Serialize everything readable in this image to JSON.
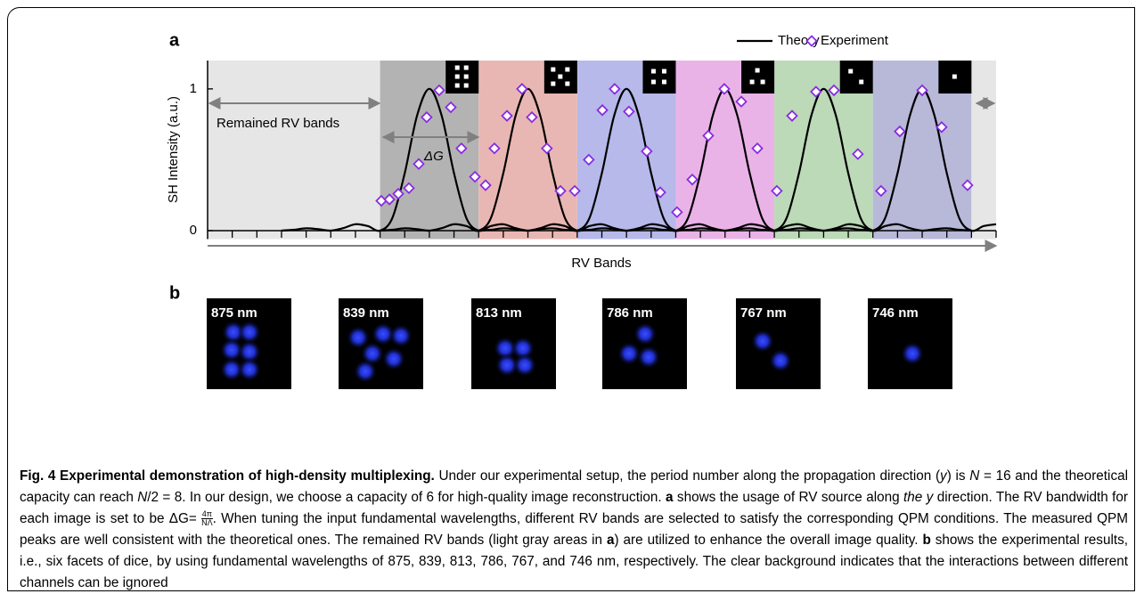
{
  "chart_data": {
    "type": "line",
    "panel_label": "a",
    "y_label": "SH Intensity (a.u.)",
    "x_label": "RV Bands",
    "annotations": [
      "Remained RV bands",
      "ΔG"
    ],
    "xlim": [
      0,
      32
    ],
    "ylim": [
      -0.06,
      1.2
    ],
    "yticks": [
      0,
      1
    ],
    "xticks": [
      1,
      2,
      3,
      4,
      5,
      6,
      7,
      8,
      9,
      10,
      11,
      12,
      13,
      14,
      15,
      16,
      17,
      18,
      19,
      20,
      21,
      22,
      23,
      24,
      25,
      26,
      27,
      28,
      29,
      30,
      31,
      32
    ],
    "legend": "top-right",
    "bands": [
      {
        "from": 0,
        "to": 7,
        "color": "#e6e6e6"
      },
      {
        "from": 7,
        "to": 11,
        "color": "#b3b3b3"
      },
      {
        "from": 11,
        "to": 15,
        "color": "#e9b7b3"
      },
      {
        "from": 15,
        "to": 19,
        "color": "#b6b9e9"
      },
      {
        "from": 19,
        "to": 23,
        "color": "#eab3e8"
      },
      {
        "from": 23,
        "to": 27,
        "color": "#bcd9b8"
      },
      {
        "from": 27,
        "to": 31,
        "color": "#b8b8d8"
      },
      {
        "from": 31,
        "to": 32,
        "color": "#e6e6e6"
      }
    ],
    "series": [
      {
        "name": "Theory",
        "type": "line",
        "color": "#000000",
        "x": [
          3,
          3.5,
          4,
          4.5,
          5,
          5.5,
          6,
          6.5,
          7,
          7.5,
          8,
          8.5,
          9,
          9.5,
          10,
          10.5,
          11,
          11.5,
          12,
          12.5,
          13,
          13.5,
          14,
          14.5,
          15,
          null,
          7,
          7.5,
          8,
          8.5,
          9,
          9.5,
          10,
          10.5,
          11,
          11.5,
          12,
          12.5,
          13,
          13.5,
          14,
          14.5,
          15,
          15.5,
          16,
          16.5,
          17,
          17.5,
          18,
          18.5,
          19,
          null,
          11,
          11.5,
          12,
          12.5,
          13,
          13.5,
          14,
          14.5,
          15,
          15.5,
          16,
          16.5,
          17,
          17.5,
          18,
          18.5,
          19,
          19.5,
          20,
          20.5,
          21,
          21.5,
          22,
          22.5,
          23,
          null,
          15,
          15.5,
          16,
          16.5,
          17,
          17.5,
          18,
          18.5,
          19,
          19.5,
          20,
          20.5,
          21,
          21.5,
          22,
          22.5,
          23,
          23.5,
          24,
          24.5,
          25,
          25.5,
          26,
          26.5,
          27,
          null,
          19,
          19.5,
          20,
          20.5,
          21,
          21.5,
          22,
          22.5,
          23,
          23.5,
          24,
          24.5,
          25,
          25.5,
          26,
          26.5,
          27,
          27.5,
          28,
          28.5,
          29,
          29.5,
          30,
          30.5,
          31,
          null,
          23,
          23.5,
          24,
          24.5,
          25,
          25.5,
          26,
          26.5,
          27,
          27.5,
          28,
          28.5,
          29,
          29.5,
          30,
          30.5,
          31,
          31.5,
          32
        ],
        "values": [
          0,
          0.006,
          0.016,
          0.01,
          0,
          0.017,
          0.045,
          0.032,
          0,
          0.09,
          0.405,
          0.811,
          1,
          0.811,
          0.405,
          0.09,
          0,
          0.032,
          0.045,
          0.017,
          0,
          0.01,
          0.016,
          0.006,
          0,
          null,
          0,
          0.006,
          0.016,
          0.01,
          0,
          0.017,
          0.045,
          0.032,
          0,
          0.09,
          0.405,
          0.811,
          1,
          0.811,
          0.405,
          0.09,
          0,
          0.032,
          0.045,
          0.017,
          0,
          0.01,
          0.016,
          0.006,
          0,
          null,
          0,
          0.006,
          0.016,
          0.01,
          0,
          0.017,
          0.045,
          0.032,
          0,
          0.09,
          0.405,
          0.811,
          1,
          0.811,
          0.405,
          0.09,
          0,
          0.032,
          0.045,
          0.017,
          0,
          0.01,
          0.016,
          0.006,
          0,
          null,
          0,
          0.006,
          0.016,
          0.01,
          0,
          0.017,
          0.045,
          0.032,
          0,
          0.09,
          0.405,
          0.811,
          1,
          0.811,
          0.405,
          0.09,
          0,
          0.032,
          0.045,
          0.017,
          0,
          0.01,
          0.016,
          0.006,
          0,
          null,
          0,
          0.006,
          0.016,
          0.01,
          0,
          0.017,
          0.045,
          0.032,
          0,
          0.09,
          0.405,
          0.811,
          1,
          0.811,
          0.405,
          0.09,
          0,
          0.032,
          0.045,
          0.017,
          0,
          0.01,
          0.016,
          0.006,
          0,
          null,
          0,
          0.006,
          0.016,
          0.01,
          0,
          0.017,
          0.045,
          0.032,
          0,
          0.09,
          0.405,
          0.811,
          1,
          0.811,
          0.405,
          0.09,
          0,
          0.032,
          0.045
        ]
      },
      {
        "name": "Experiment",
        "type": "scatter",
        "color": "#8a2be2",
        "x": [
          7.05,
          7.38,
          7.74,
          8.17,
          8.57,
          8.89,
          9.4,
          9.87,
          10.3,
          10.85,
          11.28,
          11.64,
          12.15,
          12.76,
          13.16,
          13.77,
          14.32,
          14.9,
          15.47,
          16.02,
          16.52,
          17.1,
          17.82,
          18.37,
          19.05,
          19.67,
          20.32,
          20.97,
          21.66,
          22.31,
          23.1,
          23.72,
          24.69,
          25.42,
          26.39,
          27.33,
          28.09,
          29.0,
          29.79,
          30.84
        ],
        "values": [
          0.21,
          0.22,
          0.26,
          0.3,
          0.47,
          0.8,
          0.99,
          0.87,
          0.58,
          0.38,
          0.32,
          0.58,
          0.81,
          1.0,
          0.8,
          0.58,
          0.28,
          0.28,
          0.5,
          0.85,
          1.0,
          0.84,
          0.56,
          0.27,
          0.13,
          0.36,
          0.67,
          1.0,
          0.91,
          0.58,
          0.28,
          0.81,
          0.98,
          0.99,
          0.54,
          0.28,
          0.7,
          0.99,
          0.73,
          0.32
        ]
      }
    ]
  },
  "panel_b": {
    "label": "b",
    "images": [
      {
        "label": "875 nm"
      },
      {
        "label": "839 nm"
      },
      {
        "label": "813 nm"
      },
      {
        "label": "786 nm"
      },
      {
        "label": "767 nm"
      },
      {
        "label": "746 nm"
      }
    ]
  },
  "caption": {
    "segments": [
      {
        "text": "Fig. 4 Experimental demonstration of high-density multiplexing.",
        "style": "bold"
      },
      {
        "text": " Under our experimental setup, the period number along the propagation direction (",
        "style": "normal"
      },
      {
        "text": "y",
        "style": "italic"
      },
      {
        "text": ") is ",
        "style": "normal"
      },
      {
        "text": "N",
        "style": "italic"
      },
      {
        "text": " = 16 and the theoretical capacity can reach ",
        "style": "normal"
      },
      {
        "text": "N",
        "style": "italic"
      },
      {
        "text": "/2 = 8. In our design, we choose a capacity of 6 for high-quality image reconstruction. ",
        "style": "normal"
      },
      {
        "text": "a",
        "style": "bold"
      },
      {
        "text": " shows the usage of RV source along ",
        "style": "normal"
      },
      {
        "text": "the y",
        "style": "italic"
      },
      {
        "text": " direction. The RV bandwidth for each image is set to be ΔG= ",
        "style": "normal"
      },
      {
        "text": "4π",
        "style": "numerator"
      },
      {
        "text": "NΛ",
        "style": "denominator"
      },
      {
        "text": ". When tuning the input fundamental wavelengths, different RV bands are selected to satisfy the corresponding QPM conditions. The measured QPM peaks are well consistent with the theoretical ones. The remained RV bands (light gray areas in ",
        "style": "normal"
      },
      {
        "text": "a",
        "style": "bold"
      },
      {
        "text": ") are utilized to enhance the overall image quality. ",
        "style": "normal"
      },
      {
        "text": "b",
        "style": "bold"
      },
      {
        "text": " shows the experimental results, i.e., six facets of dice, by using fundamental wavelengths of 875, 839, 813, 786, 767, and 746 nm, respectively. The clear background indicates that the interactions between different channels can be ignored",
        "style": "normal"
      }
    ]
  }
}
